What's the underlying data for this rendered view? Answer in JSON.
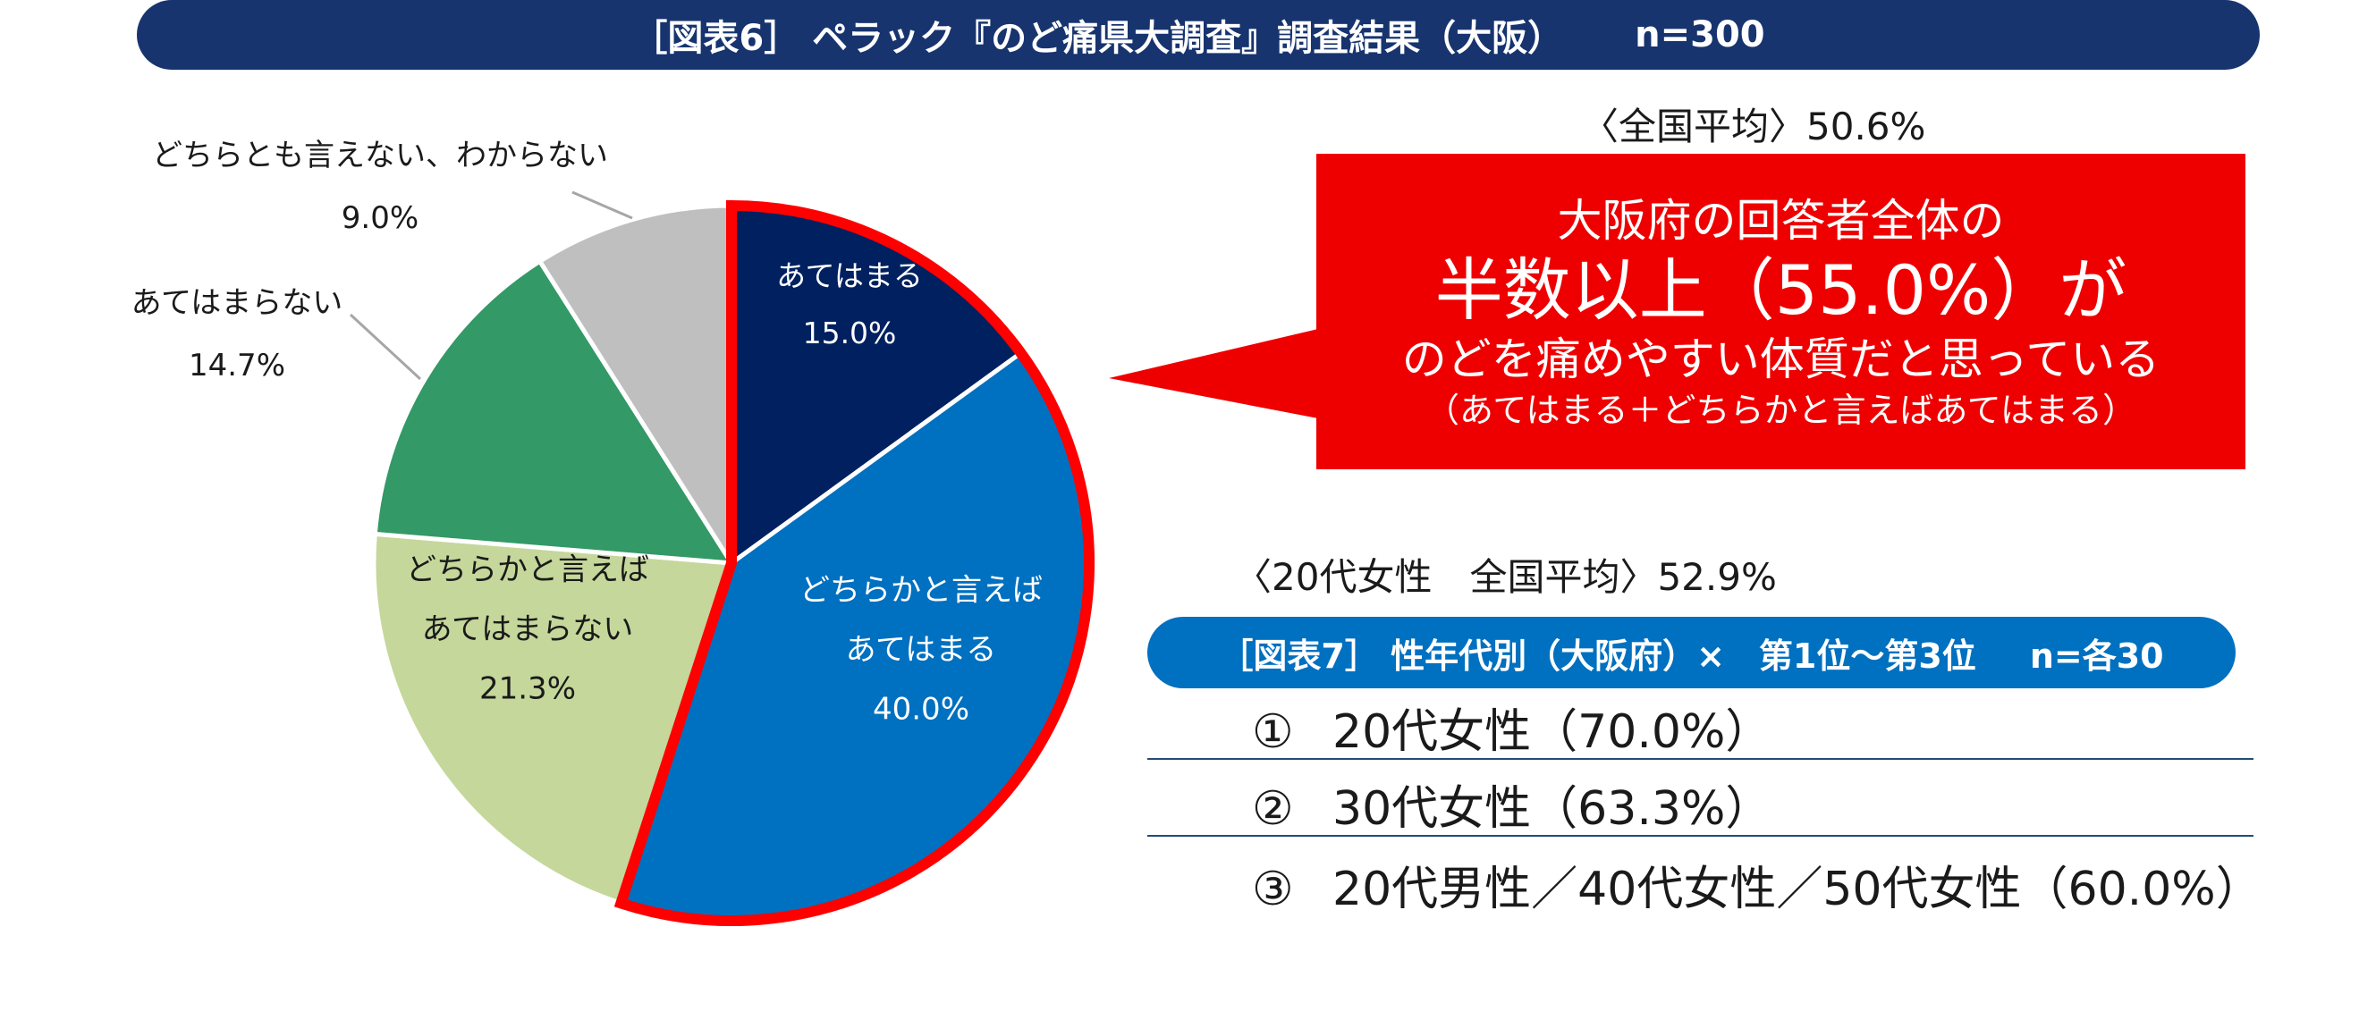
{
  "header": {
    "title": "［図表6］ ペラック『のど痛県大調査』調査結果（大阪）",
    "n_label": "n=300"
  },
  "chart_data": {
    "type": "pie",
    "categories": [
      "あてはまる",
      "どちらかと言えばあてはまる",
      "どちらかと言えばあてはまらない",
      "あてはまらない",
      "どちらとも言えない、わからない"
    ],
    "values": [
      15.0,
      40.0,
      21.3,
      14.7,
      9.0
    ],
    "value_labels": [
      "15.0%",
      "40.0%",
      "21.3%",
      "14.7%",
      "9.0%"
    ],
    "label_lines": [
      [
        "あてはまる"
      ],
      [
        "どちらかと言えば",
        "あてはまる"
      ],
      [
        "どちらかと言えば",
        "あてはまらない"
      ],
      [
        "あてはまらない"
      ],
      [
        "どちらとも言えない、わからない"
      ]
    ],
    "colors": [
      "#002060",
      "#0070c0",
      "#c5d79a",
      "#339966",
      "#bfbfbf"
    ],
    "highlight": {
      "slices": [
        "あてはまる",
        "どちらかと言えばあてはまる"
      ],
      "outline_color": "#ff0000"
    },
    "start_angle": "12 o'clock",
    "direction": "clockwise"
  },
  "national_avg": "〈全国平均〉50.6%",
  "callout": {
    "line1": "大阪府の回答者全体の",
    "line2": "半数以上（55.0%）が",
    "line3": "のどを痛めやすい体質だと思っている",
    "line4": "（あてはまる＋どちらかと言えばあてはまる）",
    "bg_color": "#ee0000"
  },
  "female20_avg": "〈20代女性　全国平均〉52.9%",
  "ranking": {
    "title": "［図表7］ 性年代別（大阪府）×　第1位～第3位",
    "n_label": "n=各30",
    "bar_color": "#0070c0",
    "items": [
      {
        "mark": "①",
        "text": "20代女性（70.0%）"
      },
      {
        "mark": "②",
        "text": "30代女性（63.3%）"
      },
      {
        "mark": "③",
        "text": "20代男性／40代女性／50代女性（60.0%）"
      }
    ]
  }
}
